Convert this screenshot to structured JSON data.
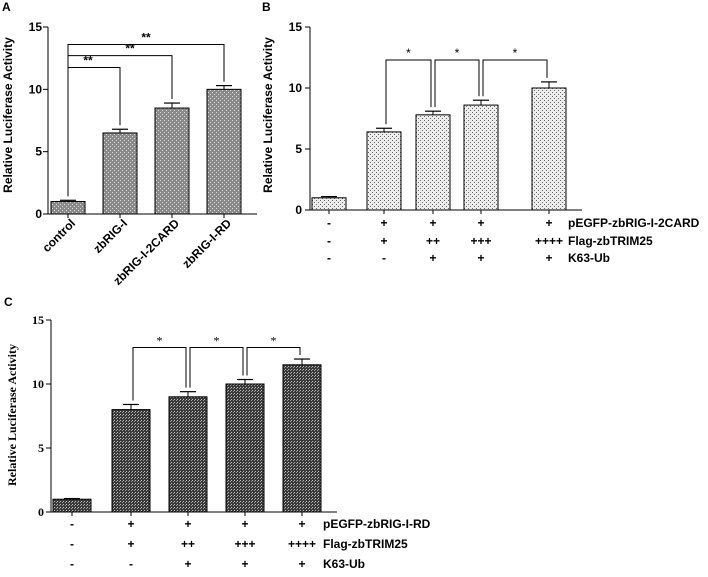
{
  "chart_data": [
    {
      "panel_label": "A",
      "type": "bar",
      "ylabel": "Relative Luciferase Activity",
      "ylim": [
        0,
        15
      ],
      "yticks": [
        "0",
        "5",
        "10",
        "15"
      ],
      "categories": [
        "control",
        "zbRIG-I",
        "zbRIG-I-2CARD",
        "zbRIG-I-RD"
      ],
      "values": [
        1.0,
        6.5,
        8.5,
        10.0
      ],
      "errors": [
        0.1,
        0.3,
        0.4,
        0.3
      ],
      "significance": [
        {
          "from": 0,
          "to": 1,
          "label": "**"
        },
        {
          "from": 0,
          "to": 2,
          "label": "**"
        },
        {
          "from": 0,
          "to": 3,
          "label": "**"
        }
      ]
    },
    {
      "panel_label": "B",
      "type": "bar",
      "ylabel": "Relative Luciferase Activity",
      "ylim": [
        0,
        15
      ],
      "yticks": [
        "0",
        "5",
        "10",
        "15"
      ],
      "values": [
        1.0,
        6.4,
        7.8,
        8.6,
        10.0
      ],
      "errors": [
        0.1,
        0.3,
        0.3,
        0.4,
        0.5
      ],
      "significance": [
        {
          "from": 1,
          "to": 2,
          "label": "*"
        },
        {
          "from": 2,
          "to": 3,
          "label": "*"
        },
        {
          "from": 3,
          "to": 4,
          "label": "*"
        }
      ],
      "conditions": [
        {
          "label": "pEGFP-zbRIG-I-2CARD",
          "marks": [
            "-",
            "+",
            "+",
            "+",
            "+"
          ]
        },
        {
          "label": "Flag-zbTRIM25",
          "marks": [
            "-",
            "+",
            "++",
            "+++",
            "++++"
          ]
        },
        {
          "label": "K63-Ub",
          "marks": [
            "-",
            "-",
            "+",
            "+",
            "+"
          ]
        }
      ]
    },
    {
      "panel_label": "C",
      "type": "bar",
      "ylabel": "Relative Luciferase Activity",
      "ylim": [
        0,
        15
      ],
      "yticks": [
        "0",
        "5",
        "10",
        "15"
      ],
      "values": [
        1.0,
        8.0,
        9.0,
        10.0,
        11.5
      ],
      "errors": [
        0.05,
        0.4,
        0.4,
        0.35,
        0.45
      ],
      "significance": [
        {
          "from": 1,
          "to": 2,
          "label": "*"
        },
        {
          "from": 2,
          "to": 3,
          "label": "*"
        },
        {
          "from": 3,
          "to": 4,
          "label": "*"
        }
      ],
      "conditions": [
        {
          "label": "pEGFP-zbRIG-I-RD",
          "marks": [
            "-",
            "+",
            "+",
            "+",
            "+"
          ]
        },
        {
          "label": "Flag-zbTRIM25",
          "marks": [
            "-",
            "+",
            "++",
            "+++",
            "++++"
          ]
        },
        {
          "label": "K63-Ub",
          "marks": [
            "-",
            "-",
            "+",
            "+",
            "+"
          ]
        }
      ]
    }
  ]
}
